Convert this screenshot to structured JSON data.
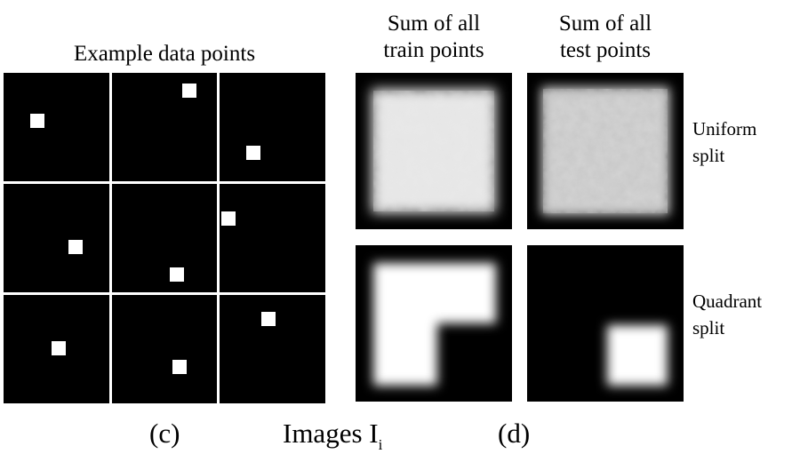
{
  "panel_c": {
    "title": "Example data points",
    "label": "(c)",
    "cells": [
      {
        "row": 0,
        "col": 0,
        "dot": [
          0.32,
          0.44
        ]
      },
      {
        "row": 0,
        "col": 1,
        "dot": [
          0.74,
          0.16
        ]
      },
      {
        "row": 0,
        "col": 2,
        "dot": [
          0.32,
          0.74
        ]
      },
      {
        "row": 1,
        "col": 0,
        "dot": [
          0.68,
          0.58
        ]
      },
      {
        "row": 1,
        "col": 1,
        "dot": [
          0.62,
          0.84
        ]
      },
      {
        "row": 1,
        "col": 2,
        "dot": [
          0.08,
          0.32
        ]
      },
      {
        "row": 2,
        "col": 0,
        "dot": [
          0.52,
          0.49
        ]
      },
      {
        "row": 2,
        "col": 1,
        "dot": [
          0.64,
          0.66
        ]
      },
      {
        "row": 2,
        "col": 2,
        "dot": [
          0.46,
          0.22
        ]
      }
    ]
  },
  "caption": {
    "text": "Images I",
    "subscript": "i"
  },
  "panel_d": {
    "label": "(d)",
    "column_headers": [
      [
        "Sum of all",
        "train points"
      ],
      [
        "Sum of all",
        "test points"
      ]
    ],
    "row_labels": [
      [
        "Uniform",
        "split"
      ],
      [
        "Quadrant",
        "split"
      ]
    ],
    "tiles": {
      "uniform_train": "noisy-uniform",
      "uniform_test": "noisy-uniform",
      "quadrant_train": "L-shape-missing-bottom-right",
      "quadrant_test": "bottom-right-quadrant"
    }
  }
}
